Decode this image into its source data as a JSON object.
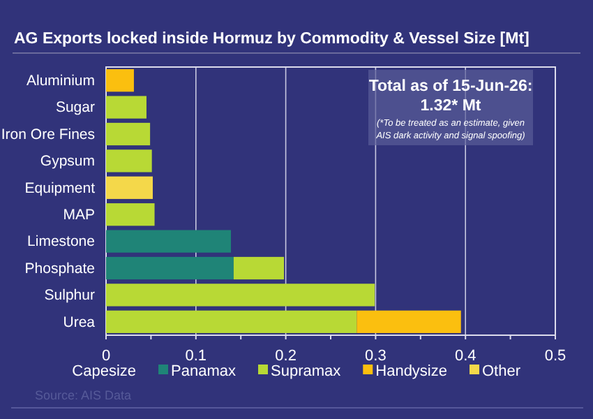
{
  "chart_data": {
    "type": "bar",
    "orientation": "horizontal",
    "stacked": true,
    "title": "AG Exports locked inside Hormuz by Commodity & Vessel Size [Mt]",
    "categories": [
      "Aluminium",
      "Sugar",
      "Iron Ore Fines",
      "Gypsum",
      "Equipment",
      "MAP",
      "Limestone",
      "Phosphate",
      "Sulphur",
      "Urea"
    ],
    "series": [
      {
        "name": "Capesize",
        "values": [
          null,
          null,
          null,
          null,
          null,
          null,
          null,
          null,
          null,
          null
        ]
      },
      {
        "name": "Panamax",
        "color": "#1f8477",
        "values": [
          null,
          null,
          null,
          null,
          null,
          null,
          0.139,
          0.142,
          null,
          null
        ]
      },
      {
        "name": "Supramax",
        "color": "#b8d935",
        "values": [
          null,
          0.045,
          0.049,
          0.051,
          null,
          0.054,
          null,
          0.056,
          0.299,
          0.279
        ]
      },
      {
        "name": "Handysize",
        "color": "#fbbf0f",
        "values": [
          0.031,
          null,
          null,
          null,
          null,
          null,
          null,
          null,
          null,
          0.116
        ]
      },
      {
        "name": "Other",
        "color": "#f4d84a",
        "values": [
          null,
          null,
          null,
          null,
          0.052,
          null,
          null,
          null,
          null,
          null
        ]
      }
    ],
    "xlim": [
      0,
      0.5
    ],
    "xticks": [
      0,
      {
        "value": 0.05,
        "label": null
      },
      0.1,
      {
        "value": 0.15,
        "label": null
      },
      0.2,
      {
        "value": 0.25,
        "label": null
      },
      0.3,
      {
        "value": 0.35,
        "label": null
      },
      0.4,
      {
        "value": 0.45,
        "label": null
      },
      0.5
    ],
    "grid": "x",
    "legend": "bottom",
    "annotations": [
      "Total as of 15-Jun-26:\n1.32* Mt",
      "(*To be treated as an estimate, given\nAIS dark activity and signal spoofing)",
      "Source: AIS Data"
    ]
  }
}
